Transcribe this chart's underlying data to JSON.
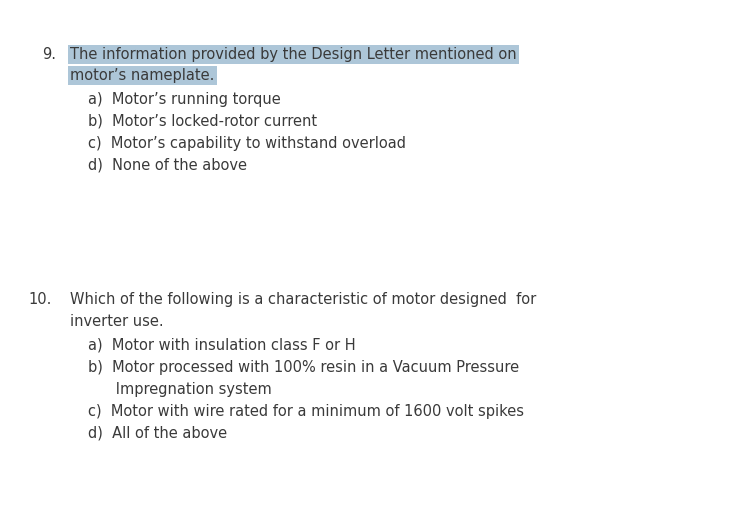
{
  "background_color": "#ffffff",
  "text_color": "#3a3a3a",
  "highlight_color": "#adc6d8",
  "font_size": 10.5,
  "q9_number": "9.",
  "q9_question_line1": "The information provided by the Design Letter mentioned on",
  "q9_question_line2": "motor’s nameplate.",
  "q9_options": [
    "a)  Motor’s running torque",
    "b)  Motor’s locked-rotor current",
    "c)  Motor’s capability to withstand overload",
    "d)  None of the above"
  ],
  "q10_number": "10.",
  "q10_question_line1": "Which of the following is a characteristic of motor designed  for",
  "q10_question_line2": "inverter use.",
  "q10_options_a": "a)  Motor with insulation class F or H",
  "q10_options_b1": "b)  Motor processed with 100% resin in a Vacuum Pressure",
  "q10_options_b2": "      Impregnation system",
  "q10_options_c": "c)  Motor with wire rated for a minimum of 1600 volt spikes",
  "q10_options_d": "d)  All of the above"
}
